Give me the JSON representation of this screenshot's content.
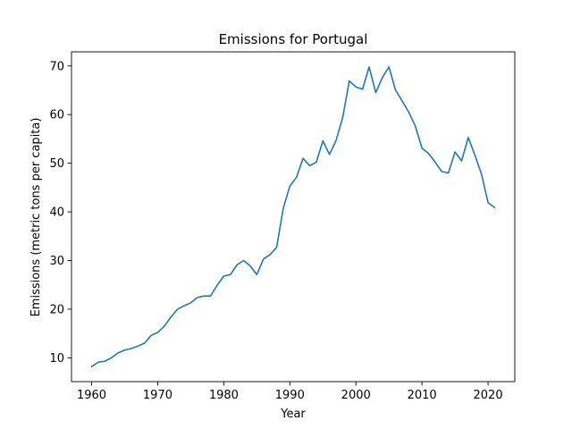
{
  "chart_data": {
    "type": "line",
    "title": "Emissions for Portugal",
    "xlabel": "Year",
    "ylabel": "Emissions (metric tons per capita)",
    "xlim": [
      1956.95,
      2024.05
    ],
    "ylim": [
      5.1,
      72.9
    ],
    "xticks": [
      1960,
      1970,
      1980,
      1990,
      2000,
      2010,
      2020
    ],
    "yticks": [
      10,
      20,
      30,
      40,
      50,
      60,
      70
    ],
    "grid": false,
    "line_color": "#1f77b4",
    "series": [
      {
        "x": [
          1960,
          1961,
          1962,
          1963,
          1964,
          1965,
          1966,
          1967,
          1968,
          1969,
          1970,
          1971,
          1972,
          1973,
          1974,
          1975,
          1976,
          1977,
          1978,
          1979,
          1980,
          1981,
          1982,
          1983,
          1984,
          1985,
          1986,
          1987,
          1988,
          1989,
          1990,
          1991,
          1992,
          1993,
          1994,
          1995,
          1996,
          1997,
          1998,
          1999,
          2000,
          2001,
          2002,
          2003,
          2004,
          2005,
          2006,
          2007,
          2008,
          2009,
          2010,
          2011,
          2012,
          2013,
          2014,
          2015,
          2016,
          2017,
          2018,
          2019,
          2020,
          2021
        ],
        "values": [
          8.2,
          9.1,
          9.3,
          10.0,
          11.0,
          11.6,
          11.9,
          12.4,
          13.0,
          14.6,
          15.2,
          16.5,
          18.4,
          20.0,
          20.7,
          21.3,
          22.4,
          22.7,
          22.7,
          24.9,
          26.8,
          27.1,
          29.1,
          30.0,
          28.9,
          27.1,
          30.3,
          31.2,
          32.7,
          40.7,
          45.3,
          47.1,
          51.0,
          49.5,
          50.2,
          54.6,
          51.8,
          54.7,
          59.4,
          66.9,
          65.7,
          65.2,
          69.8,
          64.5,
          67.6,
          69.8,
          65.0,
          62.8,
          60.5,
          57.6,
          53.1,
          52.0,
          50.2,
          48.3,
          48.0,
          52.3,
          50.5,
          55.3,
          51.7,
          47.8,
          41.9,
          40.9
        ]
      }
    ]
  }
}
